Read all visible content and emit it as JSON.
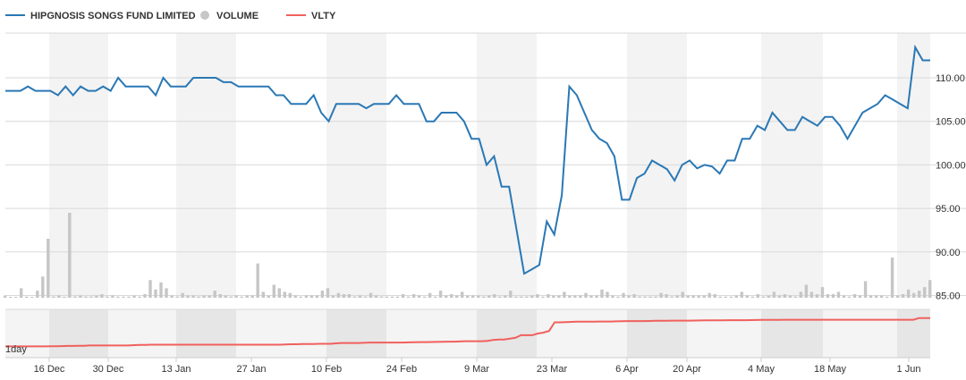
{
  "chart_data": {
    "type": "line",
    "legend": {
      "placement": "top-left",
      "items": [
        {
          "name": "HIPGNOSIS SONGS FUND LIMITED",
          "color": "#2a78b5",
          "icon": "line"
        },
        {
          "name": "VOLUME",
          "color": "#c6c6c6",
          "icon": "dot"
        },
        {
          "name": "VLTY",
          "color": "#f0605d",
          "icon": "line"
        }
      ]
    },
    "x_ticks": [
      "16 Dec",
      "30 Dec",
      "13 Jan",
      "27 Jan",
      "10 Feb",
      "24 Feb",
      "9 Mar",
      "23 Mar",
      "6 Apr",
      "20 Apr",
      "4 May",
      "18 May",
      "1 Jun"
    ],
    "y_ticks": [
      "85.00",
      "90.00",
      "95.00",
      "100.00",
      "105.00",
      "110.00"
    ],
    "ylim": [
      85,
      115
    ],
    "lower_panel_label": "1day",
    "series": [
      {
        "name": "HIPGNOSIS SONGS FUND LIMITED",
        "color": "#2a78b5",
        "values": [
          108.5,
          108.5,
          108.5,
          109,
          108.5,
          108.5,
          108.5,
          108,
          109,
          108,
          109,
          108.5,
          108.5,
          109,
          108.5,
          110,
          109,
          109,
          109,
          109,
          108,
          110,
          109,
          109,
          109,
          110,
          110,
          110,
          110,
          109.5,
          109.5,
          109,
          109,
          109,
          109,
          109,
          108,
          108,
          107,
          107,
          107,
          108,
          106,
          105,
          107,
          107,
          107,
          107,
          106.5,
          107,
          107,
          107,
          108,
          107,
          107,
          107,
          105,
          105,
          106,
          106,
          106,
          105,
          103,
          103,
          100,
          101,
          97.5,
          97.5,
          92.5,
          87.5,
          88,
          88.5,
          93.5,
          92,
          96.5,
          109,
          108,
          106,
          104,
          103,
          102.5,
          101,
          96,
          96,
          98.5,
          99,
          100.5,
          100,
          99.5,
          98.2,
          100,
          100.5,
          99.6,
          100,
          99.8,
          99,
          100.5,
          100.5,
          103,
          103,
          104.5,
          104,
          106,
          105,
          104,
          104,
          105.5,
          105,
          104.5,
          105.5,
          105.5,
          104.5,
          103,
          104.5,
          106,
          106.5,
          107,
          108,
          107.5,
          107,
          106.5,
          113.5,
          112,
          112
        ]
      },
      {
        "name": "VOLUME",
        "color": "#c6c6c6",
        "values": [
          2,
          0,
          0,
          8,
          1,
          0,
          6,
          18,
          50,
          1,
          2,
          0,
          72,
          1,
          2,
          1,
          1,
          2,
          3,
          1,
          2,
          1,
          1,
          1,
          2,
          1,
          3,
          15,
          7,
          13,
          8,
          2,
          1,
          4,
          2,
          2,
          1,
          2,
          2,
          6,
          3,
          2,
          1,
          2,
          1,
          2,
          2,
          29,
          5,
          2,
          11,
          8,
          5,
          4,
          2,
          1,
          2,
          2,
          2,
          6,
          8,
          2,
          4,
          3,
          3,
          1,
          2,
          1,
          4,
          2,
          1,
          1,
          1,
          1,
          3,
          1,
          3,
          2,
          1,
          4,
          1,
          6,
          2,
          3,
          2,
          5,
          2,
          2,
          2,
          1,
          2,
          3,
          1,
          2,
          6,
          1,
          1,
          1,
          2,
          3,
          1,
          3,
          2,
          2,
          5,
          2,
          2,
          2,
          4,
          2,
          2,
          7,
          5,
          2,
          1,
          4,
          2,
          3,
          1,
          1,
          1,
          1,
          4,
          3,
          1,
          2,
          5,
          2,
          2,
          2,
          2,
          4,
          3,
          1,
          1,
          1,
          2,
          5,
          2,
          1,
          3,
          1,
          2,
          5,
          2,
          3,
          2,
          1,
          5,
          11,
          5,
          3,
          9,
          3,
          3,
          5,
          2,
          1,
          3,
          2,
          14,
          2,
          2,
          2,
          1,
          34,
          2,
          3,
          7,
          4,
          6,
          9,
          15
        ]
      },
      {
        "name": "VLTY",
        "color": "#f0605d",
        "values": [
          10,
          10,
          10,
          10,
          10,
          10,
          10,
          10,
          10.1,
          10.2,
          10.3,
          10.5,
          10.5,
          10.6,
          10.7,
          11,
          11,
          11,
          11,
          11,
          11,
          11,
          11,
          11.5,
          11.7,
          11.8,
          12,
          12,
          12,
          12,
          12,
          12,
          12,
          12,
          12,
          12,
          12,
          12,
          12,
          12,
          12,
          12,
          12,
          12,
          12,
          12,
          12,
          12,
          12,
          12,
          12.2,
          12.5,
          12.5,
          12.7,
          12.8,
          12.8,
          13,
          13,
          13,
          13.5,
          14,
          14,
          14,
          14,
          14.2,
          14.5,
          14.5,
          14.5,
          14.5,
          14.5,
          14.5,
          14.5,
          14.7,
          14.8,
          15,
          15,
          15.1,
          15.2,
          15.3,
          15.5,
          15.5,
          15.7,
          16,
          16,
          16,
          16,
          16.5,
          17.5,
          18,
          18,
          19,
          20,
          23,
          23,
          23,
          25,
          26,
          28,
          38,
          38,
          38.2,
          38.5,
          38.7,
          38.8,
          38.8,
          38.8,
          39,
          39,
          39,
          39.2,
          39.4,
          39.5,
          39.5,
          39.5,
          39.5,
          39.6,
          39.8,
          39.8,
          39.9,
          40,
          40,
          40,
          40,
          40.1,
          40.2,
          40.3,
          40.3,
          40.3,
          40.4,
          40.5,
          40.5,
          40.5,
          40.5,
          40.6,
          40.7,
          40.8,
          40.8,
          40.8,
          40.9,
          41,
          41,
          41,
          41,
          41,
          41,
          41,
          41,
          41,
          41,
          41,
          41,
          41,
          41,
          41,
          41,
          41,
          41,
          41,
          41,
          41,
          41,
          41,
          41,
          43,
          43,
          43
        ]
      }
    ],
    "weekend_bands": true,
    "grid": true
  }
}
